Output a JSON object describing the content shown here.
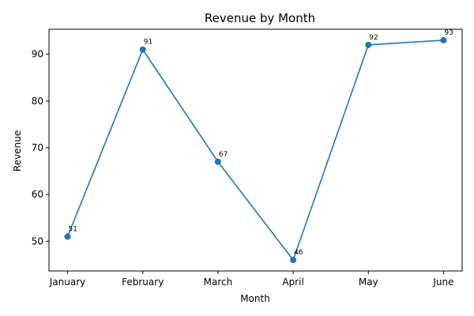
{
  "chart_data": {
    "type": "line",
    "title": "Revenue by Month",
    "xlabel": "Month",
    "ylabel": "Revenue",
    "categories": [
      "January",
      "February",
      "March",
      "April",
      "May",
      "June"
    ],
    "series": [
      {
        "values": [
          51,
          91,
          67,
          46,
          92,
          93
        ],
        "color": "#1f77b4"
      }
    ],
    "ylim": [
      43.65,
      95.35
    ],
    "yticks": [
      50,
      60,
      70,
      80,
      90
    ],
    "grid": false,
    "legend": "none",
    "markers": "circle",
    "data_labels": true
  }
}
